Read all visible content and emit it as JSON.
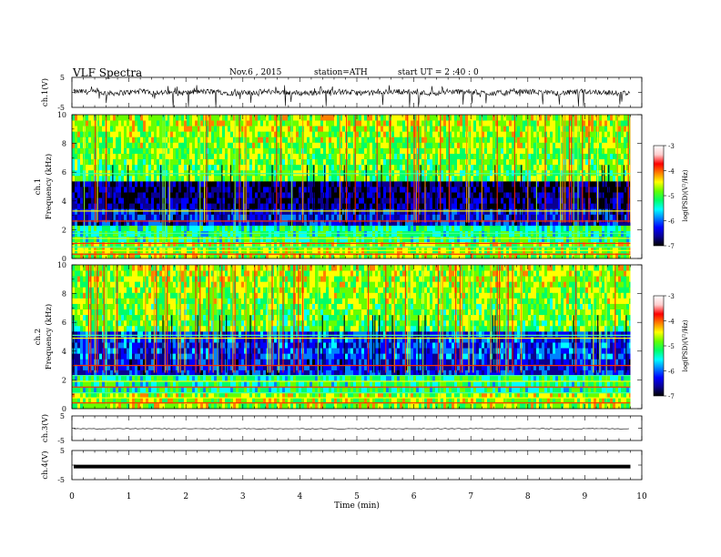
{
  "header": {
    "title": "VLF  Spectra",
    "date": "Nov.6  , 2015",
    "station": "station=ATH",
    "start": "start  UT  =   2  :40 : 0"
  },
  "colors": {
    "colormap": [
      "#000000",
      "#0a0090",
      "#0000ff",
      "#0080ff",
      "#00ffff",
      "#00ff66",
      "#66ff00",
      "#ffff00",
      "#ff8000",
      "#ff0000",
      "#ffcccc",
      "#ffffff"
    ],
    "waveform": "#000000"
  },
  "chart_data": [
    {
      "type": "line",
      "ylabel": "ch.1(V)",
      "ylim": [
        -5,
        5
      ],
      "yticks": [
        "5",
        "-5"
      ],
      "description_values": "broadband VLF waveform, roughly ±1 V with spikes to about -5 V",
      "x": [
        0,
        9.8
      ]
    },
    {
      "type": "heatmap",
      "ylabel": "ch.1\nFrequency  (kHz)",
      "ylim": [
        0,
        10
      ],
      "yticks": [
        "0",
        "2",
        "4",
        "6",
        "8",
        "10"
      ],
      "xlim": [
        0,
        10
      ],
      "data_xmax": 9.8,
      "colorbar": {
        "label": "log(PSD)(V²/Hz)",
        "range": [
          -7,
          -3
        ],
        "ticks": [
          "-3",
          "-4",
          "-5",
          "-6",
          "-7"
        ]
      }
    },
    {
      "type": "heatmap",
      "ylabel": "ch.2\nFrequency  (kHz)",
      "ylim": [
        0,
        10
      ],
      "yticks": [
        "0",
        "2",
        "4",
        "6",
        "8",
        "10"
      ],
      "xlim": [
        0,
        10
      ],
      "data_xmax": 9.8,
      "colorbar": {
        "label": "log(PSD)(V²/Hz)",
        "range": [
          -7,
          -3
        ],
        "ticks": [
          "-3",
          "-4",
          "-5",
          "-6",
          "-7"
        ]
      }
    },
    {
      "type": "line",
      "ylabel": "ch.3(V)",
      "ylim": [
        -5,
        5
      ],
      "yticks": [
        "5",
        "-5"
      ],
      "x": [
        0,
        9.8
      ],
      "level": -0.2
    },
    {
      "type": "line",
      "ylabel": "ch.4(V)",
      "ylim": [
        -5,
        5
      ],
      "yticks": [
        "5",
        "-5"
      ],
      "x": [
        0,
        9.8
      ],
      "level": -0.5,
      "xlabel": "Time  (min)",
      "xticks": [
        "0",
        "1",
        "2",
        "3",
        "4",
        "5",
        "6",
        "7",
        "8",
        "9",
        "10"
      ],
      "xlim": [
        0,
        10
      ]
    }
  ]
}
